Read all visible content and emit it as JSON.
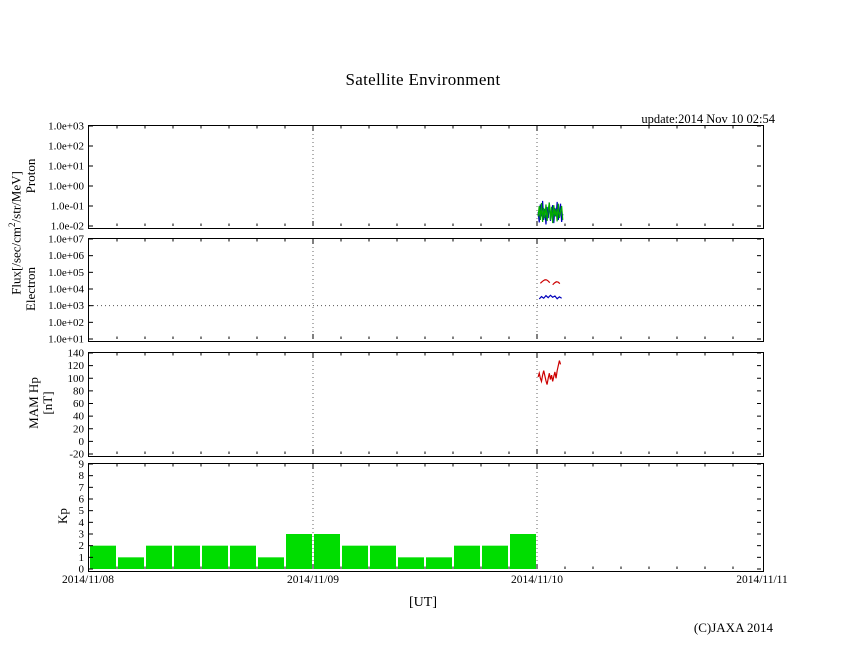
{
  "title": "Satellite Environment",
  "update_text": "update:2014 Nov 10 02:54",
  "copyright": "(C)JAXA 2014",
  "flux_label": {
    "pre": "Flux[/sec/cm",
    "sup": "2",
    "post": "/str/MeV]"
  },
  "xaxis": {
    "label": "[UT]",
    "tick_labels": [
      "2014/11/08",
      "2014/11/09",
      "2014/11/10",
      "2014/11/11"
    ],
    "range_days": 3,
    "minor_tick_days": 0.125
  },
  "chart_data": [
    {
      "panel": "proton",
      "type": "line",
      "ylabel": "Proton",
      "yscale": "log",
      "ylim": [
        0.01,
        1000
      ],
      "yticks": [
        1000,
        100,
        10,
        1,
        0.1,
        0.01
      ],
      "ytick_labels": [
        "1.0e+03",
        "1.0e+02",
        "1.0e+01",
        "1.0e+00",
        "1.0e-01",
        "1.0e-02"
      ],
      "thresholds": [],
      "series": [
        {
          "name": "proton-flux-blue",
          "color": "#0000bb",
          "x": [
            2.005,
            2.01,
            2.015,
            2.02,
            2.025,
            2.03,
            2.035,
            2.04,
            2.045,
            2.05,
            2.055,
            2.06,
            2.065,
            2.07,
            2.075,
            2.08,
            2.085,
            2.09,
            2.095,
            2.1,
            2.105,
            2.11,
            2.115
          ],
          "y": [
            0.05,
            0.015,
            0.12,
            0.03,
            0.18,
            0.02,
            0.07,
            0.012,
            0.09,
            0.025,
            0.15,
            0.018,
            0.06,
            0.11,
            0.014,
            0.08,
            0.03,
            0.16,
            0.02,
            0.05,
            0.13,
            0.016,
            0.04
          ]
        },
        {
          "name": "proton-flux-green",
          "color": "#00aa00",
          "x": [
            2.005,
            2.01,
            2.015,
            2.02,
            2.025,
            2.03,
            2.035,
            2.04,
            2.045,
            2.05,
            2.055,
            2.06,
            2.065,
            2.07,
            2.075,
            2.08,
            2.085,
            2.09,
            2.095,
            2.1,
            2.105,
            2.11,
            2.115
          ],
          "y": [
            0.03,
            0.1,
            0.02,
            0.14,
            0.016,
            0.08,
            0.025,
            0.12,
            0.018,
            0.06,
            0.15,
            0.02,
            0.09,
            0.014,
            0.11,
            0.03,
            0.07,
            0.017,
            0.13,
            0.025,
            0.05,
            0.1,
            0.02
          ]
        }
      ]
    },
    {
      "panel": "electron",
      "type": "line",
      "ylabel": "Electron",
      "yscale": "log",
      "ylim": [
        10,
        10000000
      ],
      "yticks": [
        10000000,
        1000000,
        100000,
        10000,
        1000,
        100,
        10
      ],
      "ytick_labels": [
        "1.0e+07",
        "1.0e+06",
        "1.0e+05",
        "1.0e+04",
        "1.0e+03",
        "1.0e+02",
        "1.0e+01"
      ],
      "thresholds": [
        1000
      ],
      "series": [
        {
          "name": "electron-flux-red-segment-1",
          "color": "#cc0000",
          "x": [
            2.015,
            2.022,
            2.029,
            2.036,
            2.043,
            2.05,
            2.057
          ],
          "y": [
            22000,
            27000,
            32000,
            36000,
            35000,
            30000,
            24000
          ]
        },
        {
          "name": "electron-flux-red-segment-2",
          "color": "#cc0000",
          "x": [
            2.07,
            2.078,
            2.086,
            2.094,
            2.102
          ],
          "y": [
            18000,
            23000,
            27000,
            26000,
            21000
          ]
        },
        {
          "name": "electron-flux-blue",
          "color": "#0000bb",
          "x": [
            2.01,
            2.02,
            2.03,
            2.04,
            2.05,
            2.06,
            2.07,
            2.08,
            2.09,
            2.1,
            2.11
          ],
          "y": [
            2500,
            3500,
            2800,
            4000,
            3000,
            4200,
            3200,
            3800,
            2600,
            3400,
            2800
          ]
        }
      ]
    },
    {
      "panel": "mam",
      "type": "line",
      "ylabel_line1": "MAM Hp",
      "ylabel_line2": "[nT]",
      "yscale": "linear",
      "ylim": [
        -20,
        140
      ],
      "yticks": [
        140,
        120,
        100,
        80,
        60,
        40,
        20,
        0,
        -20
      ],
      "ytick_labels": [
        "140",
        "120",
        "100",
        "80",
        "60",
        "40",
        "20",
        "0",
        "-20"
      ],
      "thresholds": [],
      "series": [
        {
          "name": "mam-hp-red",
          "color": "#cc0000",
          "x": [
            2.005,
            2.01,
            2.015,
            2.02,
            2.025,
            2.03,
            2.035,
            2.04,
            2.045,
            2.05,
            2.055,
            2.06,
            2.065,
            2.07,
            2.075,
            2.08,
            2.085,
            2.09,
            2.095,
            2.1,
            2.105
          ],
          "y": [
            102,
            108,
            100,
            95,
            105,
            112,
            104,
            96,
            90,
            100,
            108,
            98,
            105,
            95,
            103,
            110,
            100,
            112,
            120,
            128,
            122
          ]
        }
      ]
    },
    {
      "panel": "kp",
      "type": "bar",
      "ylabel": "Kp",
      "yscale": "linear",
      "ylim": [
        0,
        9
      ],
      "yticks": [
        9,
        8,
        7,
        6,
        5,
        4,
        3,
        2,
        1,
        0
      ],
      "ytick_labels": [
        "9",
        "8",
        "7",
        "6",
        "5",
        "4",
        "3",
        "2",
        "1",
        "0"
      ],
      "thresholds": [],
      "bar_color": "#00dd00",
      "bar_width_days": 0.125,
      "x": [
        0,
        0.125,
        0.25,
        0.375,
        0.5,
        0.625,
        0.75,
        0.875,
        1.0,
        1.125,
        1.25,
        1.375,
        1.5,
        1.625,
        1.75,
        1.875
      ],
      "values": [
        2,
        1,
        2,
        2,
        2,
        2,
        1,
        3,
        3,
        2,
        2,
        1,
        1,
        2,
        2,
        3
      ]
    }
  ]
}
